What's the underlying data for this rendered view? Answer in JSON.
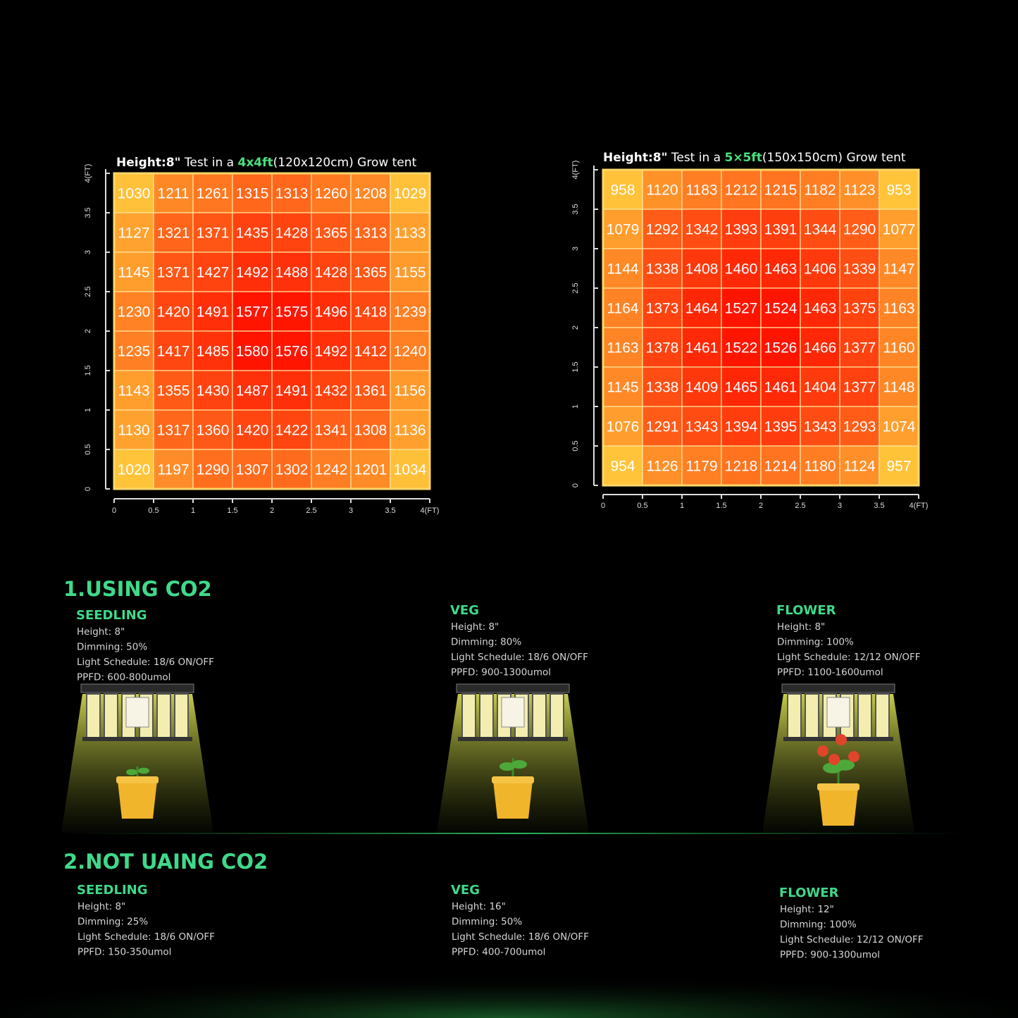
{
  "heatmaps": [
    {
      "title": {
        "height": "Height:8\"",
        "pre": " Test in a ",
        "size": "4x4ft",
        "post": "(120x120cm) Grow tent"
      },
      "y_ticks": [
        "0",
        "0.5",
        "1",
        "1.5",
        "2",
        "2.5",
        "3",
        "3.5",
        "4(FT)"
      ],
      "x_ticks": [
        "0",
        "0.5",
        "1",
        "1.5",
        "2",
        "2.5",
        "3",
        "3.5",
        "4(FT)"
      ],
      "rows": [
        [
          1030,
          1211,
          1261,
          1315,
          1313,
          1260,
          1208,
          1029
        ],
        [
          1127,
          1321,
          1371,
          1435,
          1428,
          1365,
          1313,
          1133
        ],
        [
          1145,
          1371,
          1427,
          1492,
          1488,
          1428,
          1365,
          1155
        ],
        [
          1230,
          1420,
          1491,
          1577,
          1575,
          1496,
          1418,
          1239
        ],
        [
          1235,
          1417,
          1485,
          1580,
          1576,
          1492,
          1412,
          1240
        ],
        [
          1143,
          1355,
          1430,
          1487,
          1491,
          1432,
          1361,
          1156
        ],
        [
          1130,
          1317,
          1360,
          1420,
          1422,
          1341,
          1308,
          1136
        ],
        [
          1020,
          1197,
          1290,
          1307,
          1302,
          1242,
          1201,
          1034
        ]
      ]
    },
    {
      "title": {
        "height": "Height:8\"",
        "pre": " Test in a ",
        "size": "5×5ft",
        "post": "(150x150cm) Grow tent"
      },
      "y_ticks": [
        "0",
        "0.5",
        "1",
        "1.5",
        "2",
        "2.5",
        "3",
        "3.5",
        "4(FT)"
      ],
      "x_ticks": [
        "0",
        "0.5",
        "1",
        "1.5",
        "2",
        "2.5",
        "3",
        "3.5",
        "4(FT)"
      ],
      "rows": [
        [
          958,
          1120,
          1183,
          1212,
          1215,
          1182,
          1123,
          953
        ],
        [
          1079,
          1292,
          1342,
          1393,
          1391,
          1344,
          1290,
          1077
        ],
        [
          1144,
          1338,
          1408,
          1460,
          1463,
          1406,
          1339,
          1147
        ],
        [
          1164,
          1373,
          1464,
          1527,
          1524,
          1463,
          1375,
          1163
        ],
        [
          1163,
          1378,
          1461,
          1522,
          1526,
          1466,
          1377,
          1160
        ],
        [
          1145,
          1338,
          1409,
          1465,
          1461,
          1404,
          1377,
          1148
        ],
        [
          1076,
          1291,
          1343,
          1394,
          1395,
          1343,
          1293,
          1074
        ],
        [
          954,
          1126,
          1179,
          1218,
          1214,
          1180,
          1124,
          957
        ]
      ]
    }
  ],
  "sections": [
    {
      "title": "1.USING CO2",
      "stages": [
        {
          "name": "SEEDLING",
          "lines": [
            "Height: 8\"",
            "Dimming: 50%",
            "Light Schedule: 18/6 ON/OFF",
            "PPFD: 600-800umol"
          ]
        },
        {
          "name": "VEG",
          "lines": [
            "Height: 8\"",
            "Dimming: 80%",
            "Light Schedule: 18/6 ON/OFF",
            "PPFD: 900-1300umol"
          ]
        },
        {
          "name": "FLOWER",
          "lines": [
            "Height: 8\"",
            "Dimming: 100%",
            "Light Schedule: 12/12 ON/OFF",
            "PPFD: 1100-1600umol"
          ]
        }
      ]
    },
    {
      "title": "2.NOT UAING CO2",
      "stages": [
        {
          "name": "SEEDLING",
          "lines": [
            "Height: 8\"",
            "Dimming: 25%",
            "Light Schedule: 18/6 ON/OFF",
            "PPFD: 150-350umol"
          ]
        },
        {
          "name": "VEG",
          "lines": [
            "Height: 16\"",
            "Dimming: 50%",
            "Light Schedule: 18/6 ON/OFF",
            "PPFD: 400-700umol"
          ]
        },
        {
          "name": "FLOWER",
          "lines": [
            "Height: 12\"",
            "Dimming: 100%",
            "Light Schedule: 12/12 ON/OFF",
            "PPFD: 900-1300umol"
          ]
        }
      ]
    }
  ]
}
